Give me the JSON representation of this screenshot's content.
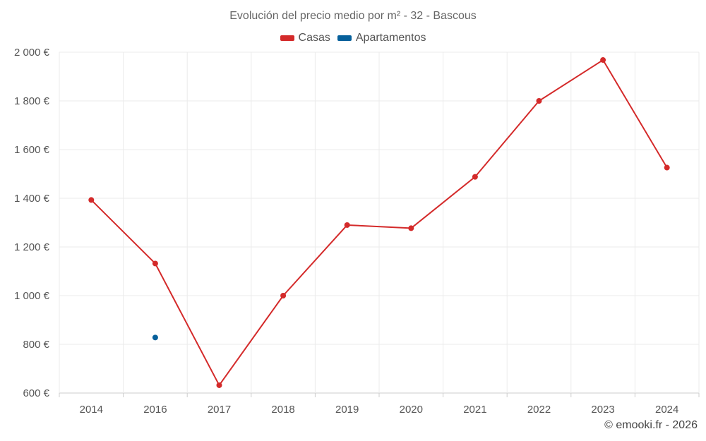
{
  "chart_data": {
    "type": "line",
    "title": "Evolución del precio medio por m² - 32 - Bascous",
    "categories": [
      "2014",
      "2016",
      "2017",
      "2018",
      "2019",
      "2020",
      "2021",
      "2022",
      "2023",
      "2024"
    ],
    "series": [
      {
        "name": "Casas",
        "color": "#d42a2a",
        "values": [
          1393,
          1132,
          632,
          1000,
          1290,
          1277,
          1488,
          1800,
          1968,
          1526
        ]
      },
      {
        "name": "Apartamentos",
        "color": "#06609b",
        "values": [
          null,
          828,
          null,
          null,
          null,
          null,
          null,
          null,
          null,
          null
        ]
      }
    ],
    "y_ticks": [
      "600 €",
      "800 €",
      "1 000 €",
      "1 200 €",
      "1 400 €",
      "1 600 €",
      "1 800 €",
      "2 000 €"
    ],
    "ylim": [
      600,
      2000
    ],
    "grid": true,
    "legend_position": "top-center"
  },
  "credit": "© emooki.fr - 2026"
}
